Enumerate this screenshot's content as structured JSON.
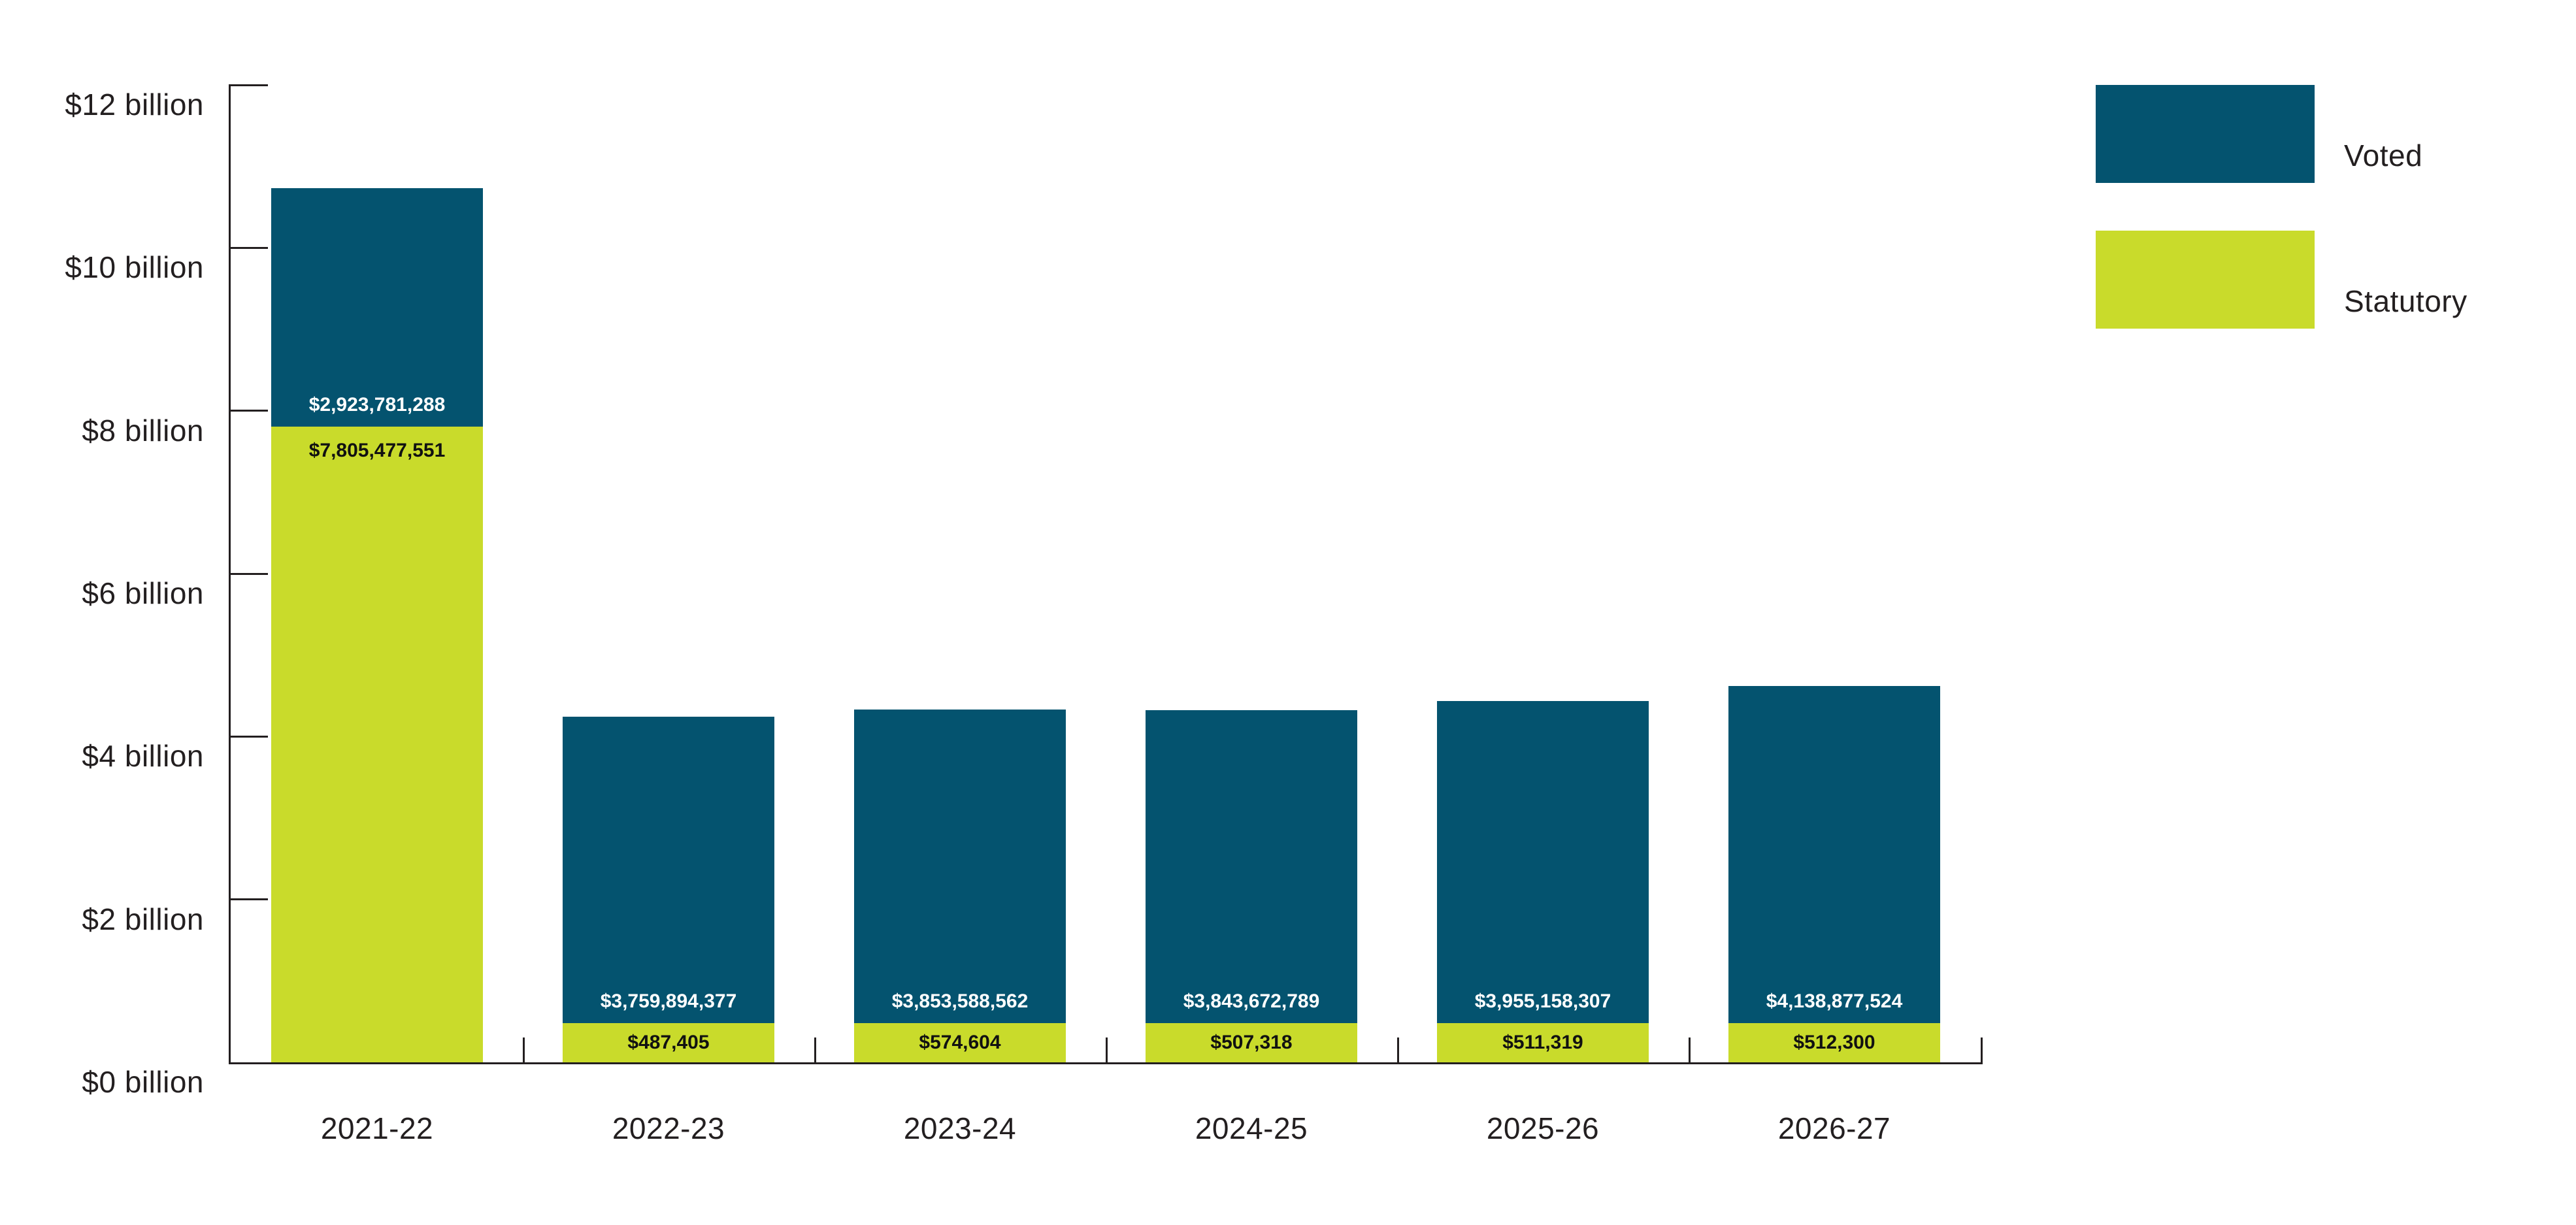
{
  "chart_data": {
    "type": "bar",
    "stacked": true,
    "title": "",
    "xlabel": "",
    "ylabel": "",
    "grid": false,
    "legend_position": "top-right",
    "categories": [
      "2021-22",
      "2022-23",
      "2023-24",
      "2024-25",
      "2025-26",
      "2026-27"
    ],
    "series": [
      {
        "name": "Voted",
        "color": "#04536f",
        "label_color": "#ffffff",
        "values": [
          2923781288,
          3759894377,
          3853588562,
          3843672789,
          3955158307,
          4138877524
        ],
        "labels": [
          "$2,923,781,288",
          "$3,759,894,377",
          "$3,853,588,562",
          "$3,843,672,789",
          "$3,955,158,307",
          "$4,138,877,524"
        ]
      },
      {
        "name": "Statutory",
        "color": "#c9db2b",
        "label_color": "#111111",
        "values": [
          7805477551,
          487405,
          574604,
          507318,
          511319,
          512300
        ],
        "labels": [
          "$7,805,477,551",
          "$487,405",
          "$574,604",
          "$507,318",
          "$511,319",
          "$512,300"
        ]
      }
    ],
    "y_axis": {
      "unit": "billions of dollars",
      "ylim": [
        0,
        12
      ],
      "tick_step_billions": 2,
      "ticks": [
        {
          "value": 12,
          "label": "$12 billion"
        },
        {
          "value": 10,
          "label": "$10 billion"
        },
        {
          "value": 8,
          "label": "$8 billion"
        },
        {
          "value": 6,
          "label": "$6 billion"
        },
        {
          "value": 4,
          "label": "$4 billion"
        },
        {
          "value": 2,
          "label": "$2 billion"
        },
        {
          "value": 0,
          "label": "$0 billion"
        }
      ]
    },
    "legend": [
      {
        "label": "Voted",
        "color": "#04536f"
      },
      {
        "label": "Statutory",
        "color": "#c9db2b"
      }
    ],
    "axis_color": "#231f20"
  }
}
